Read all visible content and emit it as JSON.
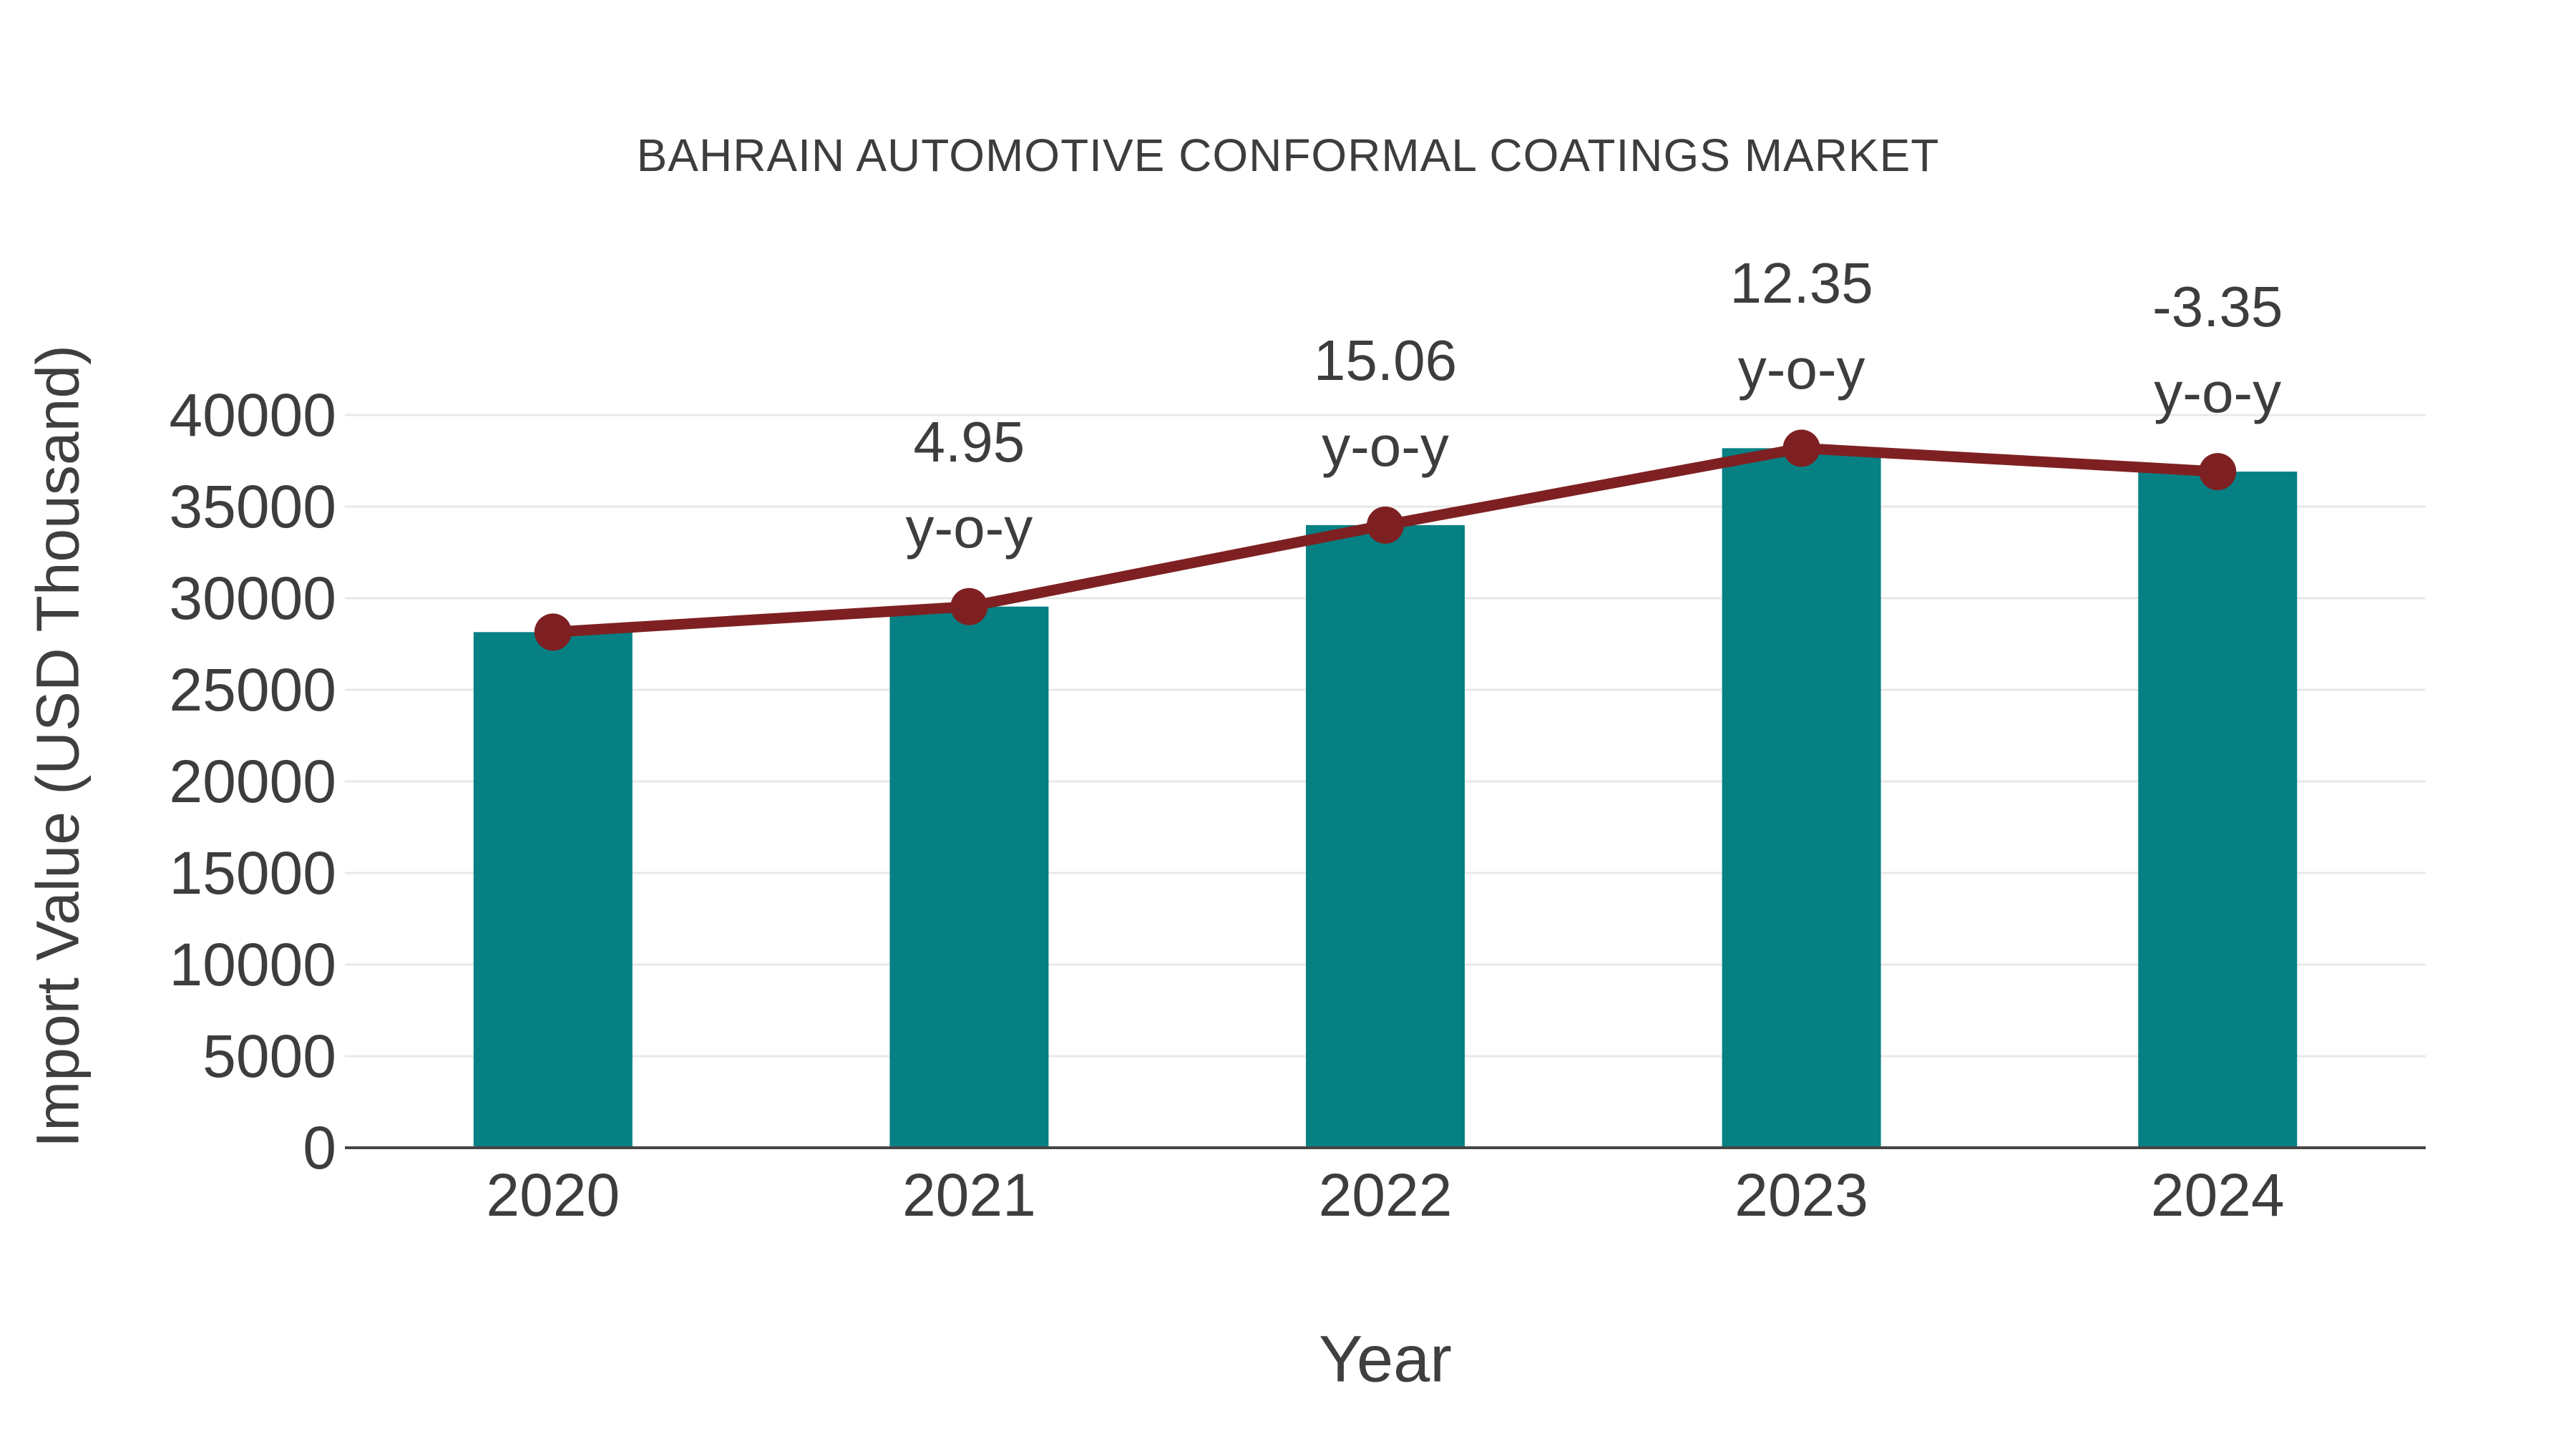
{
  "chart_data": {
    "type": "bar",
    "title": "BAHRAIN AUTOMOTIVE CONFORMAL COATINGS MARKET",
    "xlabel": "Year",
    "ylabel": "Import Value (USD Thousand)",
    "categories": [
      "2020",
      "2021",
      "2022",
      "2023",
      "2024"
    ],
    "series": [
      {
        "name": "Import Value",
        "type": "bar",
        "values": [
          28150,
          29543,
          33991,
          38189,
          36910
        ]
      },
      {
        "name": "Import Value trend",
        "type": "line",
        "values": [
          28150,
          29543,
          33991,
          38189,
          36910
        ]
      }
    ],
    "annotations": [
      {
        "category": "2021",
        "value_label": "4.95",
        "suffix_label": "y-o-y"
      },
      {
        "category": "2022",
        "value_label": "15.06",
        "suffix_label": "y-o-y"
      },
      {
        "category": "2023",
        "value_label": "12.35",
        "suffix_label": "y-o-y"
      },
      {
        "category": "2024",
        "value_label": "-3.35",
        "suffix_label": "y-o-y"
      }
    ],
    "yticks": [
      0,
      5000,
      10000,
      15000,
      20000,
      25000,
      30000,
      35000,
      40000
    ],
    "ylim": [
      0,
      41000
    ],
    "grid": true,
    "legend_position": "none",
    "colors": {
      "bar": "#068083",
      "line": "#7e2022",
      "marker": "#7e2022",
      "grid": "#e8e8e8",
      "axis_line": "#454545",
      "text": "#3d3d3d",
      "background": "#ffffff"
    }
  }
}
